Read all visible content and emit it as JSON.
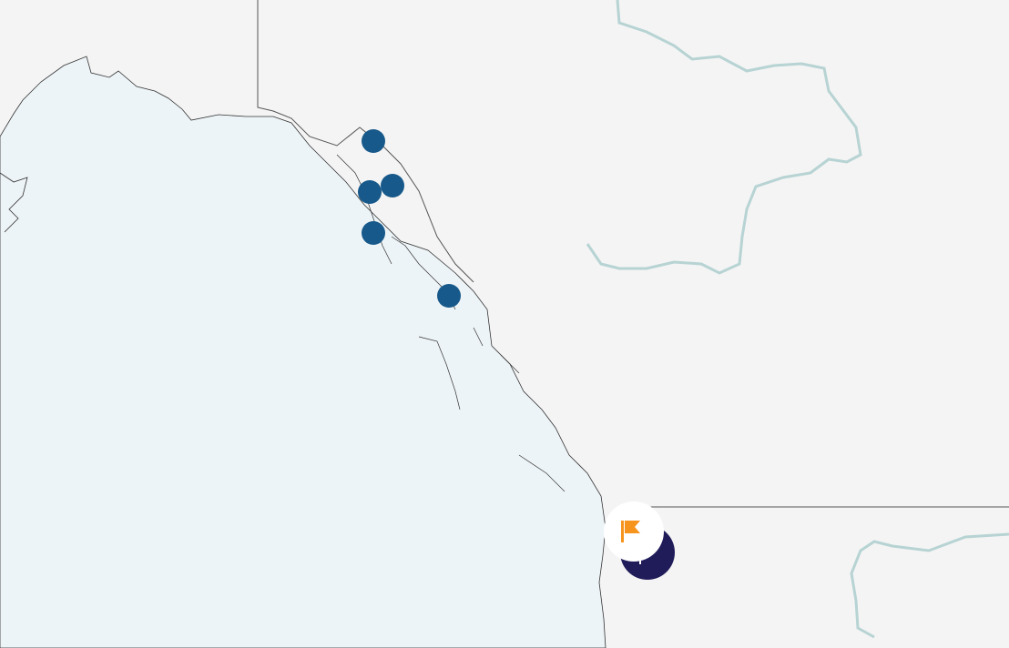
{
  "map": {
    "colors": {
      "land": "#f4f4f4",
      "water": "#edf4f7",
      "coastline": "#333333",
      "border": "#555555",
      "river": "#b7d3d3",
      "marker": "#17598a",
      "selected_marker": "#201c5a",
      "flag": "#f7941d"
    },
    "markers": [
      {
        "name": "marker-1",
        "icon": "circle"
      },
      {
        "name": "marker-2",
        "icon": "circle"
      },
      {
        "name": "marker-3",
        "icon": "circle"
      },
      {
        "name": "marker-4",
        "icon": "circle"
      },
      {
        "name": "marker-5",
        "icon": "circle"
      }
    ],
    "selected_marker": {
      "icon": "flag-icon"
    }
  }
}
